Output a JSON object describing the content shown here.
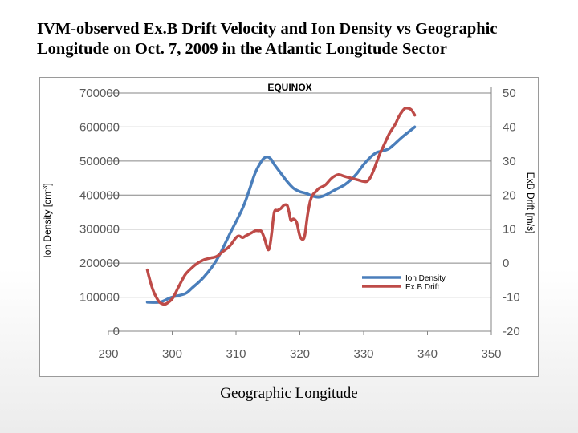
{
  "slide": {
    "title_line1": "IVM-observed Ex.B Drift Velocity and Ion Density vs Geographic",
    "title_line2": "Longitude on Oct. 7, 2009 in the Atlantic Longitude Sector",
    "x_caption": "Geographic Longitude"
  },
  "colors": {
    "ion_density": "#4a7ebb",
    "exb_drift": "#be4b48",
    "gridline": "#868686",
    "axis": "#868686"
  },
  "chart_data": {
    "type": "line",
    "title": "EQUINOX",
    "xlabel": "",
    "ylabel_left": "Ion Density [cm-3]",
    "ylabel_left_base": "Ion Density [cm",
    "ylabel_left_sup": "-3",
    "ylabel_left_close": "]",
    "ylabel_right": "ExB Drift [m/s]",
    "xlim": [
      290,
      350
    ],
    "ylim_left": [
      0,
      700000
    ],
    "ylim_right": [
      -20,
      50
    ],
    "x_ticks": [
      290,
      300,
      310,
      320,
      330,
      340,
      350
    ],
    "x_tick_labels": [
      "290",
      "300",
      "310",
      "320",
      "330",
      "340",
      "350"
    ],
    "y_left_ticks": [
      0,
      100000,
      200000,
      300000,
      400000,
      500000,
      600000,
      700000
    ],
    "y_left_tick_labels": [
      "0",
      "100000",
      "200000",
      "300000",
      "400000",
      "500000",
      "600000",
      "700000"
    ],
    "y_right_ticks": [
      -20,
      -10,
      0,
      10,
      20,
      30,
      40,
      50
    ],
    "y_right_tick_labels": [
      "-20",
      "-10",
      "0",
      "10",
      "20",
      "30",
      "40",
      "50"
    ],
    "grid": "horizontal",
    "legend_position": "center-right",
    "series": [
      {
        "name": "Ion Density",
        "axis": "left",
        "color": "#4a7ebb",
        "x": [
          296.1,
          298,
          299,
          300,
          302,
          303,
          305,
          307,
          309,
          311,
          312,
          313,
          314,
          314.5,
          315,
          315.5,
          316,
          317,
          318,
          319,
          320,
          321,
          322,
          323,
          324,
          325,
          326,
          327,
          328,
          329,
          330,
          331,
          332,
          333,
          334,
          335,
          336,
          337,
          338
        ],
        "values": [
          85000,
          85000,
          92000,
          100000,
          110000,
          125000,
          160000,
          210000,
          285000,
          360000,
          410000,
          465000,
          500000,
          510000,
          512000,
          505000,
          490000,
          465000,
          440000,
          420000,
          410000,
          405000,
          397000,
          394000,
          400000,
          410000,
          420000,
          430000,
          445000,
          465000,
          490000,
          510000,
          525000,
          530000,
          537000,
          553000,
          570000,
          585000,
          600000
        ]
      },
      {
        "name": "Ex.B Drift",
        "axis": "right",
        "color": "#be4b48",
        "x": [
          296.1,
          296.5,
          297,
          297.5,
          298,
          298.5,
          299,
          300,
          301,
          302,
          303,
          304,
          305,
          306,
          307,
          308,
          309,
          310,
          310.5,
          311,
          311.5,
          312,
          312.5,
          313,
          313.5,
          314,
          314.5,
          315,
          315.3,
          315.6,
          316,
          316.5,
          317,
          317.5,
          318,
          318.3,
          318.6,
          319,
          319.5,
          320,
          320.5,
          320.8,
          321.2,
          321.6,
          322,
          322.5,
          323,
          324,
          325,
          326,
          327,
          328,
          329,
          330,
          330.5,
          331,
          331.5,
          332,
          332.5,
          333,
          333.5,
          334,
          334.5,
          335,
          335.5,
          336,
          336.5,
          337,
          337.5,
          338
        ],
        "values": [
          -2,
          -5,
          -8,
          -10,
          -11.5,
          -12,
          -12,
          -10.5,
          -7,
          -3.5,
          -1.5,
          0,
          1,
          1.5,
          2,
          3.5,
          5,
          7.5,
          8,
          7.5,
          8,
          8.5,
          9,
          9.5,
          9.5,
          9.3,
          7,
          4,
          5,
          9,
          15,
          15.5,
          16,
          17,
          17,
          15,
          12.5,
          13,
          12,
          8,
          7,
          8.5,
          14,
          18,
          20,
          21,
          22,
          23,
          25,
          26,
          25.5,
          25,
          24.5,
          24,
          24,
          25,
          27,
          29.5,
          32,
          34,
          36,
          38,
          39.5,
          41,
          43,
          44.5,
          45.5,
          45.5,
          45,
          43.5
        ]
      }
    ]
  }
}
